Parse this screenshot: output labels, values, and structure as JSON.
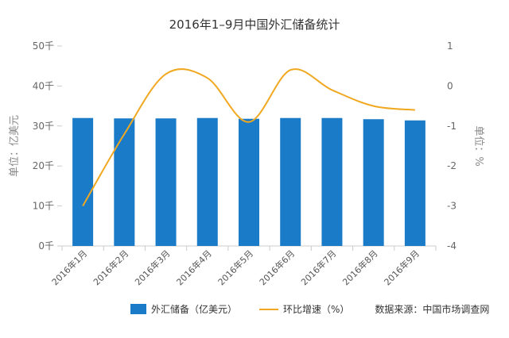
{
  "chart_data": {
    "type": "bar",
    "title": "2016年1–9月中国外汇储备统计",
    "categories": [
      "2016年1月",
      "2016年2月",
      "2016年3月",
      "2016年4月",
      "2016年5月",
      "2016年6月",
      "2016年7月",
      "2016年8月",
      "2016年9月"
    ],
    "series": [
      {
        "name": "外汇储备（亿美元）",
        "type": "bar",
        "axis": "left",
        "color": "#1a7bc8",
        "values": [
          32000,
          31900,
          31900,
          32000,
          31800,
          32000,
          32000,
          31700,
          31400
        ]
      },
      {
        "name": "环比增速（%）",
        "type": "line",
        "axis": "right",
        "color": "#f0a820",
        "values": [
          -3.0,
          -1.2,
          0.3,
          0.2,
          -0.9,
          0.4,
          -0.1,
          -0.5,
          -0.6
        ]
      }
    ],
    "y_left": {
      "label": "单位：亿美元",
      "ylim": [
        0,
        50000
      ],
      "ticks": [
        "0千",
        "10千",
        "20千",
        "30千",
        "40千",
        "50千"
      ],
      "tick_values": [
        0,
        10000,
        20000,
        30000,
        40000,
        50000
      ]
    },
    "y_right": {
      "label": "单位：%",
      "ylim": [
        -4,
        1
      ],
      "ticks": [
        "-4",
        "-3",
        "-2",
        "-1",
        "0",
        "1"
      ],
      "tick_values": [
        -4,
        -3,
        -2,
        -1,
        0,
        1
      ]
    },
    "grid": false,
    "legend_position": "bottom"
  },
  "source_text": "数据来源：中国市场调查网"
}
